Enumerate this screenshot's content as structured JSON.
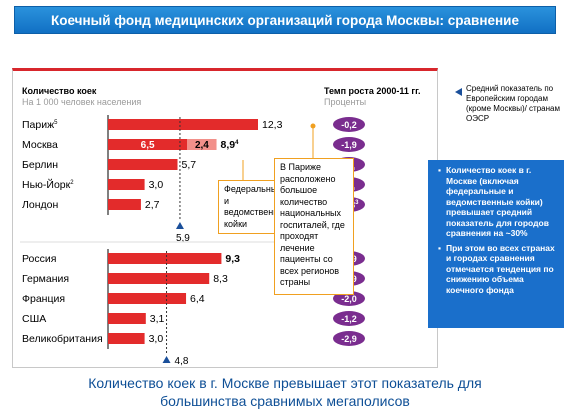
{
  "title": "Коечный фонд медицинских организаций города Москвы: сравнение",
  "footer": {
    "line1": "Количество коек в г. Москве превышает этот показатель для",
    "line2": "большинства сравнимых мегаполисов"
  },
  "headers": {
    "left_title": "Количество коек",
    "left_subtitle": "На 1 000 человек населения",
    "right_title": "Темп роста 2000-11 гг.",
    "right_subtitle": "Проценты"
  },
  "legend": {
    "marker_icon": "triangle-marker-icon",
    "text": "Средний показатель по Европейским городам (кроме Москвы)/ странам ОЭСР"
  },
  "annotations": {
    "federal_beds": "Федеральные и ведомственные койки",
    "paris_note": "В Париже расположено большое количество национальных госпиталей, где проходят лечение пациенты со всех регионов страны"
  },
  "blue_box": {
    "bullet1": "Количество коек в г. Москве (включая федеральные и ведомственные койки) превышает средний показатель для городов сравнения на ~30%",
    "bullet2": "При этом во всех странах и городах сравнения отмечается тенденция по снижению объема коечного фонда"
  },
  "colors": {
    "bar": "#e32b2b",
    "bar_federal": "#f2908a",
    "badge": "#7a2d8f",
    "title_bg": "#1a7cd0",
    "blue_box": "#1a6fcb",
    "accent_orange": "#f0a020"
  },
  "chart_data": {
    "type": "bar",
    "orientation": "horizontal",
    "groups": [
      {
        "name": "cities",
        "average_marker": 5.9,
        "average_label": "5,9",
        "items": [
          {
            "label": "Париж",
            "sup": "5",
            "value": 12.3,
            "value_label": "12,3",
            "growth": "-0,2"
          },
          {
            "label": "Москва",
            "sup": "",
            "value": 8.9,
            "value_label": "8,9",
            "value_sup": "4",
            "segments": [
              {
                "value": 6.5,
                "label": "6,5"
              },
              {
                "value": 2.4,
                "label": "2,4"
              }
            ],
            "growth": "-1,9"
          },
          {
            "label": "Берлин",
            "sup": "",
            "value": 5.7,
            "value_label": "5,7",
            "growth": "нд"
          },
          {
            "label": "Нью-Йорк",
            "sup": "2",
            "value": 3.0,
            "value_label": "3,0",
            "growth": "нд"
          },
          {
            "label": "Лондон",
            "sup": "",
            "value": 2.7,
            "value_label": "2,7",
            "growth": "-3,8",
            "growth_sup": "3"
          }
        ]
      },
      {
        "name": "countries",
        "average_marker": 4.8,
        "average_label": "4,8",
        "items": [
          {
            "label": "Россия",
            "sup": "",
            "value": 9.3,
            "value_label": "9,3",
            "bold": true,
            "growth": "-1,9"
          },
          {
            "label": "Германия",
            "sup": "",
            "value": 8.3,
            "value_label": "8,3",
            "growth": "-0,9"
          },
          {
            "label": "Франция",
            "sup": "",
            "value": 6.4,
            "value_label": "6,4",
            "growth": "-2,0"
          },
          {
            "label": "США",
            "sup": "",
            "value": 3.1,
            "value_label": "3,1",
            "growth": "-1,2"
          },
          {
            "label": "Великобритания",
            "sup": "",
            "value": 3.0,
            "value_label": "3,0",
            "growth": "-2,9"
          }
        ]
      }
    ],
    "xlim": [
      0,
      12.3
    ]
  }
}
